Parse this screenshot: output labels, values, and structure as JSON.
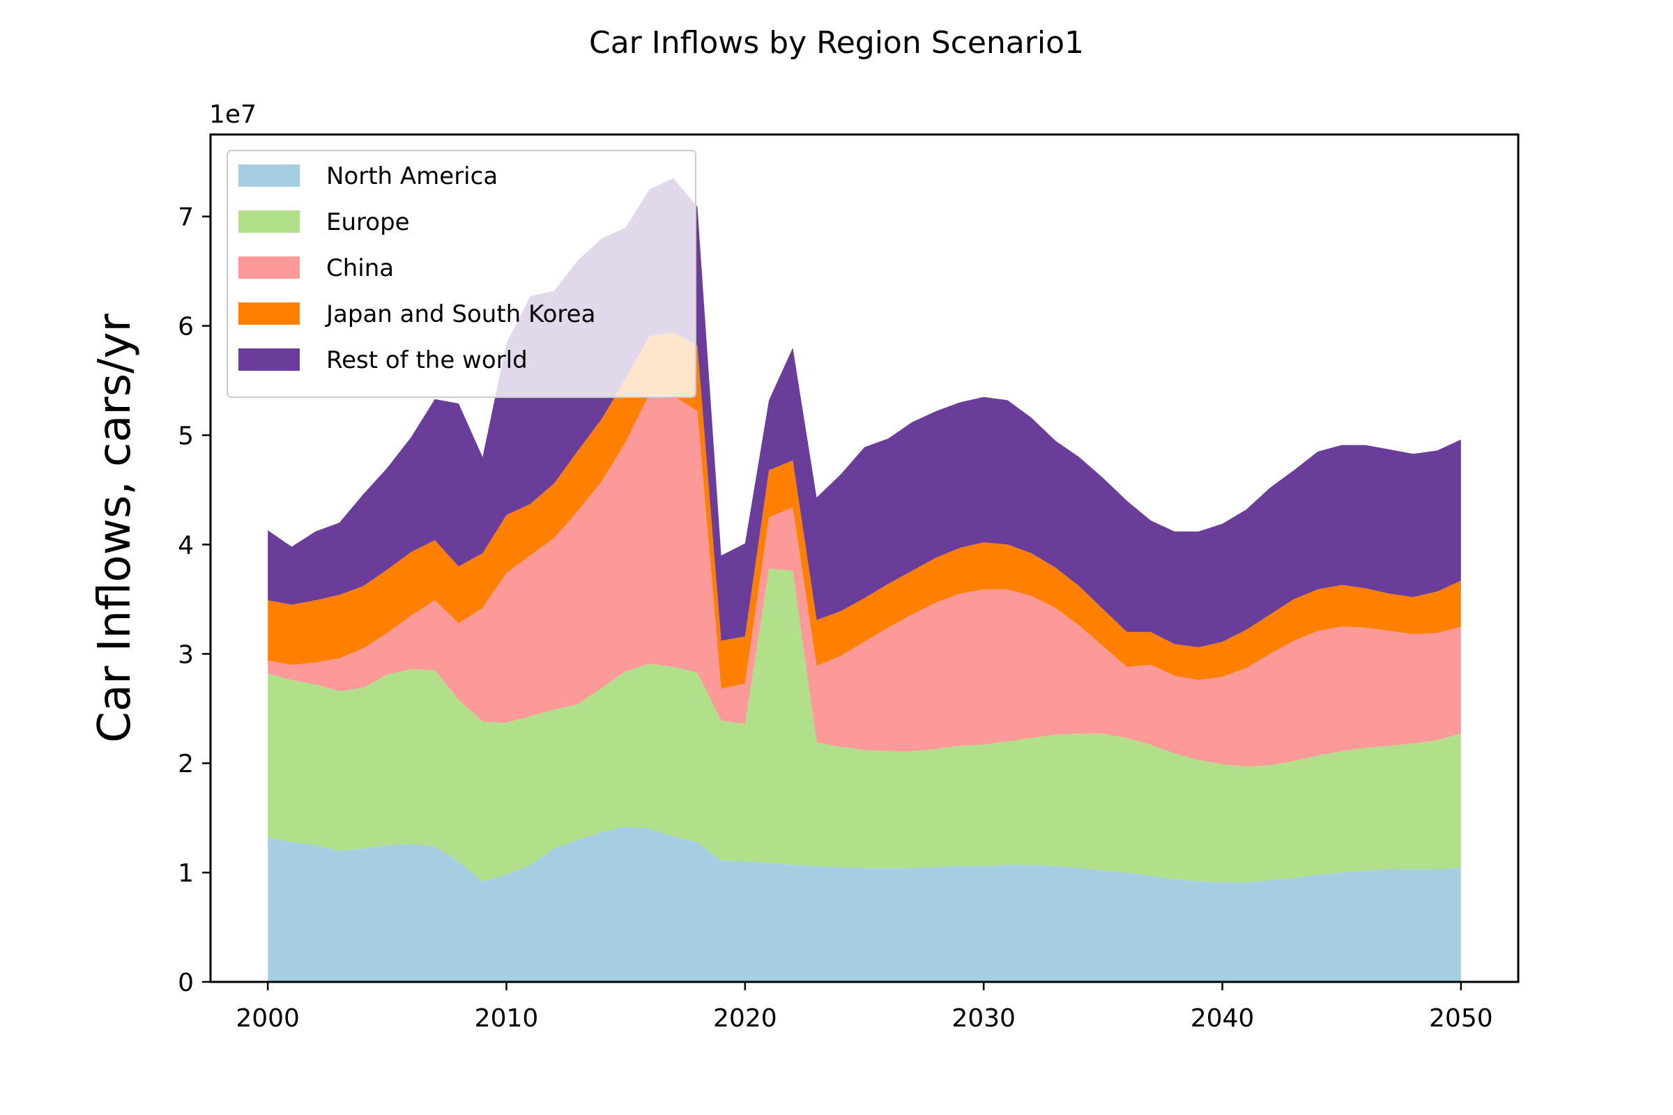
{
  "chart_data": {
    "type": "area",
    "stacked": true,
    "title": "Car Inflows by Region Scenario1",
    "xlabel": "",
    "ylabel": "Car Inflows, cars/yr",
    "y_offset_label": "1e7",
    "xlim": [
      1997.6,
      2052.4
    ],
    "ylim": [
      0,
      7.75
    ],
    "y_unit_scale": 10000000,
    "xticks": [
      2000,
      2010,
      2020,
      2030,
      2040,
      2050
    ],
    "yticks": [
      0,
      1,
      2,
      3,
      4,
      5,
      6,
      7
    ],
    "grid": false,
    "legend_position": "upper-left",
    "x": [
      2000,
      2001,
      2002,
      2003,
      2004,
      2005,
      2006,
      2007,
      2008,
      2009,
      2010,
      2011,
      2012,
      2013,
      2014,
      2015,
      2016,
      2017,
      2018,
      2019,
      2020,
      2021,
      2022,
      2023,
      2024,
      2025,
      2026,
      2027,
      2028,
      2029,
      2030,
      2031,
      2032,
      2033,
      2034,
      2035,
      2036,
      2037,
      2038,
      2039,
      2040,
      2041,
      2042,
      2043,
      2044,
      2045,
      2046,
      2047,
      2048,
      2049,
      2050
    ],
    "series": [
      {
        "name": "North America",
        "color": "#a6cee3",
        "values": [
          1.32,
          1.28,
          1.25,
          1.2,
          1.22,
          1.25,
          1.26,
          1.24,
          1.1,
          0.92,
          0.98,
          1.07,
          1.22,
          1.3,
          1.37,
          1.42,
          1.4,
          1.33,
          1.28,
          1.11,
          1.1,
          1.09,
          1.07,
          1.06,
          1.05,
          1.04,
          1.04,
          1.04,
          1.05,
          1.06,
          1.06,
          1.07,
          1.07,
          1.06,
          1.04,
          1.02,
          1.0,
          0.97,
          0.94,
          0.92,
          0.91,
          0.91,
          0.93,
          0.95,
          0.98,
          1.0,
          1.02,
          1.03,
          1.03,
          1.03,
          1.04
        ]
      },
      {
        "name": "Europe",
        "color": "#b2df8a",
        "values": [
          1.5,
          1.48,
          1.47,
          1.46,
          1.47,
          1.56,
          1.6,
          1.61,
          1.48,
          1.46,
          1.39,
          1.36,
          1.27,
          1.24,
          1.32,
          1.42,
          1.51,
          1.55,
          1.55,
          1.28,
          1.26,
          2.69,
          2.69,
          1.13,
          1.1,
          1.08,
          1.07,
          1.07,
          1.08,
          1.1,
          1.11,
          1.13,
          1.16,
          1.2,
          1.23,
          1.25,
          1.23,
          1.2,
          1.15,
          1.11,
          1.08,
          1.06,
          1.05,
          1.07,
          1.09,
          1.11,
          1.12,
          1.13,
          1.15,
          1.18,
          1.23
        ]
      },
      {
        "name": "China",
        "color": "#fb9a99",
        "values": [
          0.12,
          0.14,
          0.2,
          0.3,
          0.36,
          0.38,
          0.49,
          0.64,
          0.7,
          1.04,
          1.37,
          1.47,
          1.57,
          1.77,
          1.89,
          2.1,
          2.47,
          2.48,
          2.39,
          0.29,
          0.37,
          0.47,
          0.58,
          0.7,
          0.83,
          0.99,
          1.13,
          1.25,
          1.34,
          1.39,
          1.42,
          1.39,
          1.3,
          1.16,
          0.99,
          0.8,
          0.65,
          0.73,
          0.71,
          0.73,
          0.8,
          0.9,
          1.02,
          1.1,
          1.14,
          1.14,
          1.1,
          1.05,
          1.0,
          0.98,
          0.98
        ]
      },
      {
        "name": "Japan and South Korea",
        "color": "#ff7f00",
        "values": [
          0.55,
          0.55,
          0.57,
          0.58,
          0.57,
          0.58,
          0.58,
          0.55,
          0.52,
          0.5,
          0.53,
          0.47,
          0.5,
          0.55,
          0.57,
          0.58,
          0.53,
          0.58,
          0.6,
          0.44,
          0.43,
          0.43,
          0.43,
          0.42,
          0.41,
          0.4,
          0.4,
          0.4,
          0.41,
          0.42,
          0.43,
          0.41,
          0.39,
          0.37,
          0.36,
          0.34,
          0.32,
          0.3,
          0.29,
          0.3,
          0.32,
          0.35,
          0.36,
          0.38,
          0.38,
          0.38,
          0.36,
          0.34,
          0.34,
          0.38,
          0.42
        ]
      },
      {
        "name": "Rest of the world",
        "color": "#6a3d9a",
        "values": [
          0.64,
          0.53,
          0.63,
          0.66,
          0.84,
          0.93,
          1.05,
          1.29,
          1.49,
          0.88,
          1.57,
          1.9,
          1.76,
          1.74,
          1.65,
          1.38,
          1.34,
          1.41,
          1.27,
          0.78,
          0.85,
          0.64,
          1.03,
          1.12,
          1.25,
          1.38,
          1.33,
          1.36,
          1.34,
          1.33,
          1.33,
          1.32,
          1.24,
          1.16,
          1.18,
          1.2,
          1.2,
          1.02,
          1.03,
          1.06,
          1.08,
          1.1,
          1.16,
          1.18,
          1.26,
          1.28,
          1.31,
          1.32,
          1.31,
          1.29,
          1.29
        ]
      }
    ],
    "legend_overlay_color": "#ffffff",
    "legend_overlay_opacity": 0.8
  }
}
